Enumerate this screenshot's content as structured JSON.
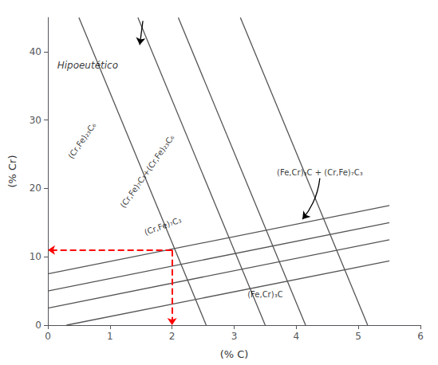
{
  "chart_data": {
    "type": "line",
    "xlabel": "(% C)",
    "ylabel": "(% Cr)",
    "xlim": [
      0,
      6
    ],
    "ylim": [
      0,
      45
    ],
    "xticks": [
      0,
      1,
      2,
      3,
      4,
      5,
      6
    ],
    "yticks": [
      0,
      10,
      20,
      30,
      40
    ],
    "grid": false,
    "series": [
      {
        "x": [
          0.5,
          2.55
        ],
        "values": [
          45,
          0
        ],
        "color": "#555555",
        "line_style": "solid"
      },
      {
        "x": [
          1.45,
          3.5
        ],
        "values": [
          45,
          0
        ],
        "color": "#555555",
        "line_style": "solid"
      },
      {
        "x": [
          2.1,
          4.15
        ],
        "values": [
          45,
          0
        ],
        "color": "#555555",
        "line_style": "solid"
      },
      {
        "x": [
          3.1,
          5.15
        ],
        "values": [
          45,
          0
        ],
        "color": "#555555",
        "line_style": "solid"
      },
      {
        "x": [
          0.0,
          5.5
        ],
        "values": [
          7.5,
          17.5
        ],
        "color": "#555555",
        "line_style": "solid"
      },
      {
        "x": [
          0.0,
          5.5
        ],
        "values": [
          5.0,
          15.0
        ],
        "color": "#555555",
        "line_style": "solid"
      },
      {
        "x": [
          0.0,
          5.5
        ],
        "values": [
          2.5,
          12.5
        ],
        "color": "#555555",
        "line_style": "solid"
      },
      {
        "x": [
          0.3,
          5.5
        ],
        "values": [
          0.0,
          9.4
        ],
        "color": "#555555",
        "line_style": "solid"
      },
      {
        "x": [
          1.53,
          1.48
        ],
        "values": [
          44.5,
          41.0
        ],
        "color": "#000000",
        "line_style": "solid",
        "marker": "arrow"
      },
      {
        "x": [
          4.38,
          4.1
        ],
        "values": [
          21.5,
          15.5
        ],
        "color": "#000000",
        "line_style": "curved",
        "marker": "arrow"
      },
      {
        "x": [
          2.0,
          0.0
        ],
        "values": [
          11.0,
          11.0
        ],
        "color": "#ff0000",
        "line_style": "dashed",
        "marker": "arrow"
      },
      {
        "x": [
          2.0,
          2.0
        ],
        "values": [
          11.0,
          0.0
        ],
        "color": "#ff0000",
        "line_style": "dashed",
        "marker": "arrow"
      }
    ],
    "annotations": [
      {
        "text": "Hipoeutético",
        "x": 0.15,
        "y": 38.0
      },
      {
        "text": "(Cr,Fe)₂₃C₆",
        "x": 0.55,
        "y": 27.0
      },
      {
        "text": "(Cr,Fe)₇C₃+(Cr,Fe)₂₃C₆",
        "x": 1.6,
        "y": 22.5
      },
      {
        "text": "(Cr,Fe)₇C₃",
        "x": 1.85,
        "y": 14.5
      },
      {
        "text": "(Fe,Cr)₃C + (Cr,Fe)₇C₃",
        "x": 4.38,
        "y": 21.5
      },
      {
        "text": "(Fe,Cr)₃C",
        "x": 3.5,
        "y": 4.5
      }
    ]
  }
}
